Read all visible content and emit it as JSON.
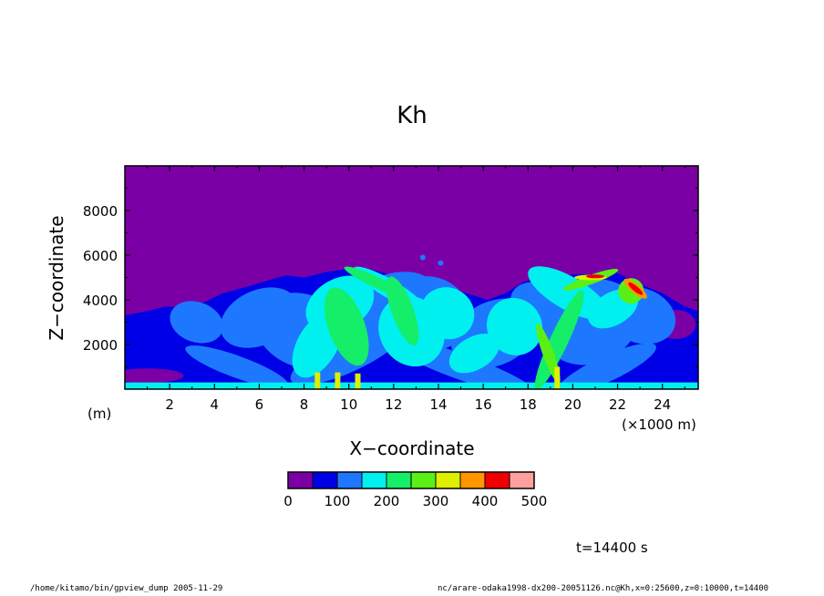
{
  "chart_data": {
    "type": "heatmap",
    "title": "Kh",
    "xlabel": "X−coordinate",
    "ylabel": "Z−coordinate",
    "x_unit": "(×1000 m)",
    "y_unit": "(m)",
    "xlim": [
      0,
      25.6
    ],
    "ylim": [
      0,
      10000
    ],
    "x_ticks": [
      2,
      4,
      6,
      8,
      10,
      12,
      14,
      16,
      18,
      20,
      22,
      24
    ],
    "y_ticks": [
      2000,
      4000,
      6000,
      8000
    ],
    "colorbar": {
      "levels": [
        0,
        50,
        100,
        150,
        200,
        250,
        300,
        350,
        400,
        450,
        500
      ],
      "tick_labels": [
        0,
        100,
        200,
        300,
        400,
        500
      ],
      "colors": [
        "#7a00a6",
        "#0000e6",
        "#1e78ff",
        "#00f0f0",
        "#14ee68",
        "#5af016",
        "#dcf000",
        "#ff9600",
        "#f00000",
        "#ffa0a0"
      ]
    },
    "time_label": "t=14400 s"
  },
  "footer": {
    "left": "/home/kitamo/bin/gpview_dump  2005-11-29",
    "right": "nc/arare-odaka1998-dx200-20051126.nc@Kh,x=0:25600,z=0:10000,t=14400"
  }
}
